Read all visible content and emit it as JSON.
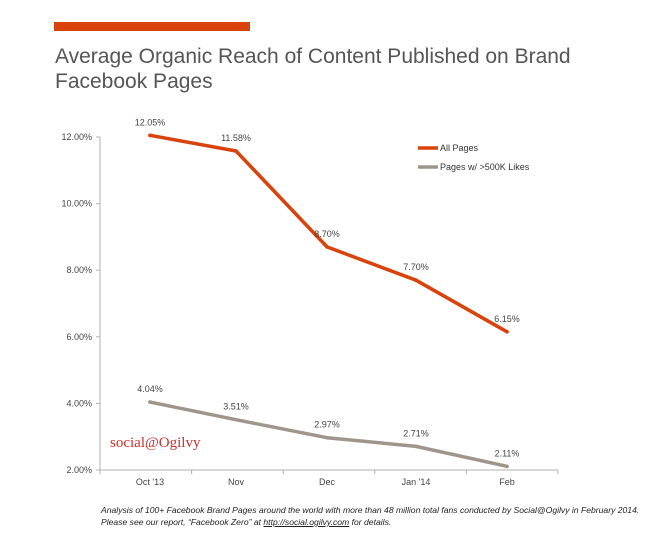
{
  "title": "Average Organic Reach of Content Published on Brand Facebook Pages",
  "colors": {
    "accent": "#d9420b",
    "series_all": "#d9420b",
    "series_500k": "#9e968a"
  },
  "brand_mark": "social@Ogilvy",
  "footnote": {
    "text_before": "Analysis of 100+ Facebook Brand Pages around the world with more than 48 million total fans conducted by Social@Ogilvy in February 2014. Please see our report, “Facebook Zero” at ",
    "link_text": "http://social.ogilvy.com",
    "text_after": " for details."
  },
  "chart_data": {
    "type": "line",
    "categories": [
      "Oct '13",
      "Nov",
      "Dec",
      "Jan '14",
      "Feb"
    ],
    "ylim": [
      2,
      12
    ],
    "y_ticks": [
      2,
      4,
      6,
      8,
      10,
      12
    ],
    "y_tick_labels": [
      "2.00%",
      "4.00%",
      "6.00%",
      "8.00%",
      "10.00%",
      "12.00%"
    ],
    "grid": false,
    "legend_position": "top-right",
    "series": [
      {
        "name": "All Pages",
        "values": [
          12.05,
          11.58,
          8.7,
          7.7,
          6.15
        ],
        "labels": [
          "12.05%",
          "11.58%",
          "8.70%",
          "7.70%",
          "6.15%"
        ]
      },
      {
        "name": "Pages w/ >500K Likes",
        "values": [
          4.04,
          3.51,
          2.97,
          2.71,
          2.11
        ],
        "labels": [
          "4.04%",
          "3.51%",
          "2.97%",
          "2.71%",
          "2.11%"
        ]
      }
    ]
  }
}
